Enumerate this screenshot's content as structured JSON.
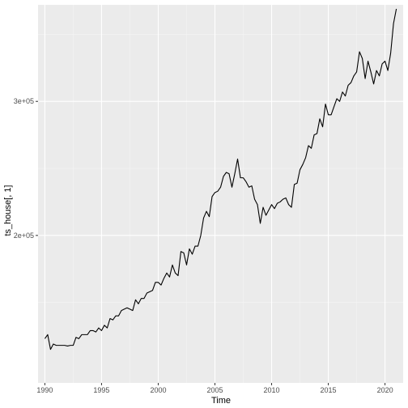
{
  "chart_data": {
    "type": "line",
    "xlabel": "Time",
    "ylabel": "ts_house[, 1]",
    "xlim": [
      1989.4,
      2021.6
    ],
    "ylim": [
      90000,
      372000
    ],
    "x_ticks": [
      {
        "value": 1990,
        "label": "1990"
      },
      {
        "value": 1995,
        "label": "1995"
      },
      {
        "value": 2000,
        "label": "2000"
      },
      {
        "value": 2005,
        "label": "2005"
      },
      {
        "value": 2010,
        "label": "2010"
      },
      {
        "value": 2015,
        "label": "2015"
      },
      {
        "value": 2020,
        "label": "2020"
      }
    ],
    "y_ticks": [
      {
        "value": 200000,
        "label": "2e+05"
      },
      {
        "value": 300000,
        "label": "3e+05"
      }
    ],
    "grid": true,
    "series": [
      {
        "points": [
          [
            1990.0,
            123000
          ],
          [
            1990.25,
            126000
          ],
          [
            1990.5,
            115000
          ],
          [
            1990.75,
            119000
          ],
          [
            1991.0,
            118000
          ],
          [
            1991.25,
            118000
          ],
          [
            1991.5,
            118000
          ],
          [
            1991.75,
            118000
          ],
          [
            1992.0,
            117500
          ],
          [
            1992.25,
            118000
          ],
          [
            1992.5,
            118000
          ],
          [
            1992.75,
            124000
          ],
          [
            1993.0,
            123000
          ],
          [
            1993.25,
            126000
          ],
          [
            1993.5,
            126000
          ],
          [
            1993.75,
            126000
          ],
          [
            1994.0,
            129000
          ],
          [
            1994.25,
            129000
          ],
          [
            1994.5,
            128000
          ],
          [
            1994.75,
            131000
          ],
          [
            1995.0,
            129000
          ],
          [
            1995.25,
            133000
          ],
          [
            1995.5,
            131000
          ],
          [
            1995.75,
            138000
          ],
          [
            1996.0,
            137000
          ],
          [
            1996.25,
            140000
          ],
          [
            1996.5,
            140000
          ],
          [
            1996.75,
            144000
          ],
          [
            1997.0,
            145000
          ],
          [
            1997.25,
            146000
          ],
          [
            1997.5,
            145000
          ],
          [
            1997.75,
            144000
          ],
          [
            1998.0,
            152000
          ],
          [
            1998.25,
            149000
          ],
          [
            1998.5,
            153000
          ],
          [
            1998.75,
            153000
          ],
          [
            1999.0,
            157000
          ],
          [
            1999.25,
            158000
          ],
          [
            1999.5,
            159000
          ],
          [
            1999.75,
            165000
          ],
          [
            2000.0,
            165000
          ],
          [
            2000.25,
            163000
          ],
          [
            2000.5,
            168000
          ],
          [
            2000.75,
            172000
          ],
          [
            2001.0,
            169000
          ],
          [
            2001.25,
            178000
          ],
          [
            2001.5,
            172000
          ],
          [
            2001.75,
            170000
          ],
          [
            2002.0,
            188000
          ],
          [
            2002.25,
            187000
          ],
          [
            2002.5,
            178000
          ],
          [
            2002.75,
            190000
          ],
          [
            2003.0,
            186000
          ],
          [
            2003.25,
            192000
          ],
          [
            2003.5,
            192000
          ],
          [
            2003.75,
            200000
          ],
          [
            2004.0,
            213000
          ],
          [
            2004.25,
            218000
          ],
          [
            2004.5,
            214000
          ],
          [
            2004.75,
            229000
          ],
          [
            2005.0,
            232000
          ],
          [
            2005.25,
            233000
          ],
          [
            2005.5,
            236000
          ],
          [
            2005.75,
            244000
          ],
          [
            2006.0,
            247000
          ],
          [
            2006.25,
            246000
          ],
          [
            2006.5,
            236000
          ],
          [
            2006.75,
            246000
          ],
          [
            2007.0,
            257000
          ],
          [
            2007.25,
            243000
          ],
          [
            2007.5,
            243000
          ],
          [
            2007.75,
            240000
          ],
          [
            2008.0,
            236000
          ],
          [
            2008.25,
            237000
          ],
          [
            2008.5,
            227000
          ],
          [
            2008.75,
            223000
          ],
          [
            2009.0,
            209000
          ],
          [
            2009.25,
            221000
          ],
          [
            2009.5,
            215000
          ],
          [
            2009.75,
            219000
          ],
          [
            2010.0,
            223000
          ],
          [
            2010.25,
            220000
          ],
          [
            2010.5,
            224000
          ],
          [
            2010.75,
            225000
          ],
          [
            2011.0,
            227000
          ],
          [
            2011.25,
            228000
          ],
          [
            2011.5,
            223000
          ],
          [
            2011.75,
            221000
          ],
          [
            2012.0,
            238000
          ],
          [
            2012.25,
            239000
          ],
          [
            2012.5,
            249000
          ],
          [
            2012.75,
            253000
          ],
          [
            2013.0,
            258000
          ],
          [
            2013.25,
            267000
          ],
          [
            2013.5,
            265000
          ],
          [
            2013.75,
            275000
          ],
          [
            2014.0,
            276000
          ],
          [
            2014.25,
            287000
          ],
          [
            2014.5,
            281000
          ],
          [
            2014.75,
            298000
          ],
          [
            2015.0,
            290000
          ],
          [
            2015.25,
            290000
          ],
          [
            2015.5,
            296000
          ],
          [
            2015.75,
            302000
          ],
          [
            2016.0,
            300000
          ],
          [
            2016.25,
            307000
          ],
          [
            2016.5,
            304000
          ],
          [
            2016.75,
            312000
          ],
          [
            2017.0,
            314000
          ],
          [
            2017.25,
            319000
          ],
          [
            2017.5,
            322000
          ],
          [
            2017.75,
            337000
          ],
          [
            2018.0,
            332000
          ],
          [
            2018.25,
            317000
          ],
          [
            2018.5,
            330000
          ],
          [
            2018.75,
            322000
          ],
          [
            2019.0,
            313000
          ],
          [
            2019.25,
            323000
          ],
          [
            2019.5,
            319000
          ],
          [
            2019.75,
            328000
          ],
          [
            2020.0,
            330000
          ],
          [
            2020.25,
            323000
          ],
          [
            2020.5,
            336000
          ],
          [
            2020.75,
            358000
          ],
          [
            2021.0,
            369000
          ]
        ]
      }
    ],
    "colors": {
      "panel": "#ebebeb",
      "grid_major": "#ffffff",
      "grid_minor": "#f5f5f5",
      "line": "#000000",
      "tick": "#333333"
    }
  }
}
